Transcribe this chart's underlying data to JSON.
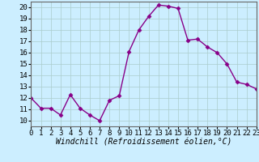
{
  "hours": [
    0,
    1,
    2,
    3,
    4,
    5,
    6,
    7,
    8,
    9,
    10,
    11,
    12,
    13,
    14,
    15,
    16,
    17,
    18,
    19,
    20,
    21,
    22,
    23
  ],
  "values": [
    12.0,
    11.1,
    11.1,
    10.5,
    12.3,
    11.1,
    10.5,
    10.0,
    11.8,
    12.2,
    16.1,
    18.0,
    19.2,
    20.2,
    20.1,
    19.9,
    17.1,
    17.2,
    16.5,
    16.0,
    15.0,
    13.4,
    13.2,
    12.8
  ],
  "xlim": [
    0,
    23
  ],
  "ylim": [
    9.5,
    20.5
  ],
  "yticks": [
    10,
    11,
    12,
    13,
    14,
    15,
    16,
    17,
    18,
    19,
    20
  ],
  "xticks": [
    0,
    1,
    2,
    3,
    4,
    5,
    6,
    7,
    8,
    9,
    10,
    11,
    12,
    13,
    14,
    15,
    16,
    17,
    18,
    19,
    20,
    21,
    22,
    23
  ],
  "line_color": "#880088",
  "marker": "D",
  "marker_size": 2.5,
  "line_width": 1.0,
  "bg_color": "#cceeff",
  "grid_color": "#aacccc",
  "xlabel": "Windchill (Refroidissement éolien,°C)",
  "tick_fontsize": 6.5,
  "label_fontsize": 7.0
}
